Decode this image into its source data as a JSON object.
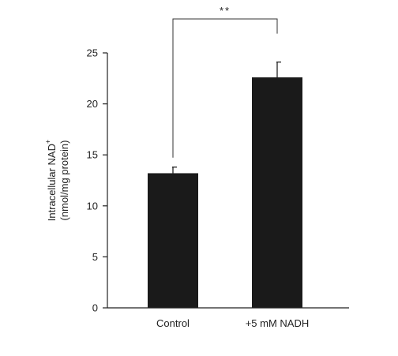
{
  "chart_data": {
    "type": "bar",
    "categories": [
      "Control",
      "+5 mM NADH"
    ],
    "values": [
      13.2,
      22.6
    ],
    "errors": [
      0.6,
      1.5
    ],
    "ylabel_line1": "Intracellular NAD",
    "ylabel_sup": "+",
    "ylabel_line2": "(nmol/mg protein)",
    "xlabel": "",
    "title": "",
    "ylim": [
      0,
      25
    ],
    "yticks": [
      0,
      5,
      10,
      15,
      20,
      25
    ],
    "significance": {
      "from": 0,
      "to": 1,
      "label": "**"
    },
    "bar_color": "#1a1a1a",
    "grid": false
  }
}
